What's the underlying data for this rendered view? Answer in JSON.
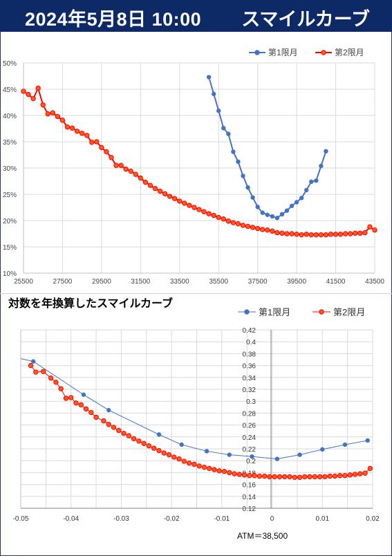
{
  "header": {
    "date_label": "2024年5月8日 10:00",
    "title": "スマイルカーブ"
  },
  "colors": {
    "banner": "#0d2a66",
    "series1": "#4472c4",
    "series2": "#ff0000",
    "series2_fill": "#ff5a1f"
  },
  "chart_data": [
    {
      "type": "line",
      "title": "",
      "xlim": [
        25500,
        43500
      ],
      "ylim": [
        0.1,
        0.5
      ],
      "x_ticks": [
        "25500",
        "27500",
        "29500",
        "31500",
        "33500",
        "35500",
        "37500",
        "39500",
        "41500",
        "43500"
      ],
      "y_ticks": [
        "10%",
        "15%",
        "20%",
        "25%",
        "30%",
        "35%",
        "40%",
        "45%",
        "50%"
      ],
      "grid": "on",
      "legend": "top-right",
      "series": [
        {
          "name": "第1限月",
          "x": [
            35000,
            35250,
            35500,
            35750,
            36000,
            36250,
            36500,
            36750,
            37000,
            37250,
            37500,
            37750,
            38000,
            38250,
            38500,
            38750,
            39000,
            39250,
            39500,
            39750,
            40000,
            40250,
            40500,
            40750,
            41000
          ],
          "y": [
            0.473,
            0.441,
            0.409,
            0.376,
            0.365,
            0.331,
            0.312,
            0.285,
            0.263,
            0.244,
            0.226,
            0.215,
            0.211,
            0.208,
            0.205,
            0.212,
            0.219,
            0.228,
            0.235,
            0.243,
            0.258,
            0.274,
            0.276,
            0.304,
            0.332
          ]
        },
        {
          "name": "第2限月",
          "x": [
            25500,
            25750,
            26000,
            26250,
            26500,
            26750,
            27000,
            27250,
            27500,
            27750,
            28000,
            28250,
            28500,
            28750,
            29000,
            29250,
            29500,
            29750,
            30000,
            30250,
            30500,
            30750,
            31000,
            31250,
            31500,
            31750,
            32000,
            32250,
            32500,
            32750,
            33000,
            33250,
            33500,
            33750,
            34000,
            34250,
            34500,
            34750,
            35000,
            35250,
            35500,
            35750,
            36000,
            36250,
            36500,
            36750,
            37000,
            37250,
            37500,
            37750,
            38000,
            38250,
            38500,
            38750,
            39000,
            39250,
            39500,
            39750,
            40000,
            40250,
            40500,
            40750,
            41000,
            41250,
            41500,
            41750,
            42000,
            42250,
            42500,
            42750,
            43000,
            43250,
            43500
          ],
          "y": [
            0.446,
            0.44,
            0.432,
            0.452,
            0.42,
            0.403,
            0.405,
            0.398,
            0.391,
            0.378,
            0.376,
            0.37,
            0.366,
            0.362,
            0.349,
            0.35,
            0.339,
            0.331,
            0.32,
            0.305,
            0.305,
            0.298,
            0.294,
            0.288,
            0.281,
            0.273,
            0.267,
            0.261,
            0.256,
            0.251,
            0.246,
            0.242,
            0.237,
            0.233,
            0.229,
            0.225,
            0.221,
            0.217,
            0.213,
            0.21,
            0.206,
            0.203,
            0.199,
            0.196,
            0.194,
            0.191,
            0.189,
            0.187,
            0.185,
            0.183,
            0.182,
            0.18,
            0.177,
            0.176,
            0.175,
            0.175,
            0.174,
            0.173,
            0.174,
            0.173,
            0.173,
            0.173,
            0.173,
            0.174,
            0.174,
            0.174,
            0.175,
            0.175,
            0.176,
            0.176,
            0.177,
            0.188,
            0.182
          ]
        }
      ]
    },
    {
      "type": "line",
      "title": "対数を年換算したスマイルカーブ",
      "footnote": "ATM＝38,500",
      "xlim": [
        -0.05,
        0.02
      ],
      "ylim": [
        0.12,
        0.42
      ],
      "x_ticks": [
        "-0.05",
        "-0.04",
        "-0.03",
        "-0.02",
        "-0.01",
        "0",
        "0.01",
        "0.02"
      ],
      "y_ticks": [
        "0.12",
        "0.14",
        "0.16",
        "0.18",
        "0.2",
        "0.22",
        "0.24",
        "0.26",
        "0.28",
        "0.3",
        "0.32",
        "0.34",
        "0.36",
        "0.38",
        "0.4",
        "0.42"
      ],
      "grid": "on",
      "legend": "top-right",
      "series": [
        {
          "name": "第1限月",
          "x": [
            -0.0475,
            -0.0375,
            -0.0325,
            -0.0225,
            -0.018,
            -0.013,
            -0.0085,
            -0.004,
            0.001,
            0.0055,
            0.01,
            0.0145,
            0.019
          ],
          "y": [
            0.367,
            0.311,
            0.285,
            0.244,
            0.227,
            0.216,
            0.21,
            0.207,
            0.203,
            0.21,
            0.219,
            0.227,
            0.234
          ]
        },
        {
          "name": "第2限月",
          "x": [
            -0.048,
            -0.047,
            -0.0455,
            -0.044,
            -0.043,
            -0.042,
            -0.041,
            -0.04,
            -0.039,
            -0.038,
            -0.037,
            -0.036,
            -0.035,
            -0.0335,
            -0.0325,
            -0.0315,
            -0.0305,
            -0.0295,
            -0.0285,
            -0.0275,
            -0.0265,
            -0.0255,
            -0.0245,
            -0.0235,
            -0.0225,
            -0.0215,
            -0.0205,
            -0.0195,
            -0.0185,
            -0.0175,
            -0.0165,
            -0.0155,
            -0.0145,
            -0.0135,
            -0.0125,
            -0.0115,
            -0.0105,
            -0.0095,
            -0.0085,
            -0.0075,
            -0.0065,
            -0.0055,
            -0.0045,
            -0.0035,
            -0.0025,
            -0.0015,
            -0.0005,
            0.0005,
            0.0015,
            0.0025,
            0.0035,
            0.0045,
            0.0055,
            0.0065,
            0.0075,
            0.0085,
            0.0095,
            0.0105,
            0.0115,
            0.0125,
            0.0135,
            0.0145,
            0.0155,
            0.0165,
            0.0175,
            0.0185,
            0.0195
          ],
          "y": [
            0.36,
            0.349,
            0.35,
            0.339,
            0.332,
            0.321,
            0.305,
            0.306,
            0.297,
            0.294,
            0.287,
            0.281,
            0.273,
            0.267,
            0.261,
            0.256,
            0.251,
            0.246,
            0.242,
            0.237,
            0.233,
            0.229,
            0.225,
            0.221,
            0.217,
            0.213,
            0.21,
            0.206,
            0.203,
            0.199,
            0.196,
            0.194,
            0.191,
            0.189,
            0.187,
            0.185,
            0.183,
            0.182,
            0.18,
            0.178,
            0.177,
            0.176,
            0.175,
            0.175,
            0.174,
            0.174,
            0.173,
            0.173,
            0.173,
            0.173,
            0.173,
            0.172,
            0.172,
            0.173,
            0.173,
            0.173,
            0.173,
            0.173,
            0.174,
            0.174,
            0.175,
            0.175,
            0.176,
            0.177,
            0.178,
            0.179,
            0.187
          ]
        }
      ]
    }
  ]
}
